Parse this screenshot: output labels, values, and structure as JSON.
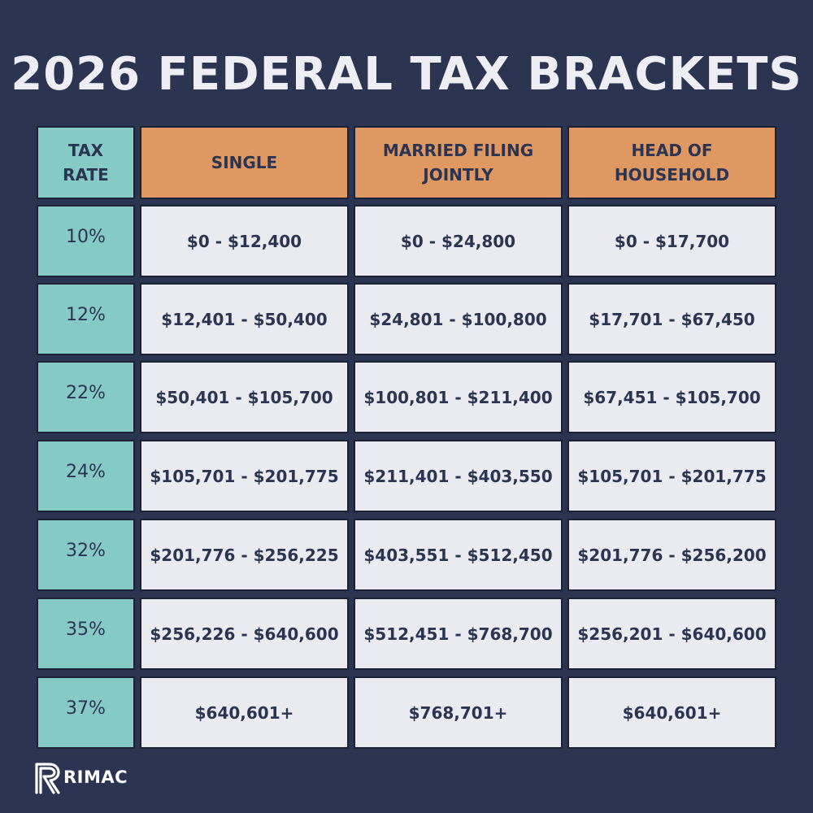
{
  "title": "2026 FEDERAL TAX BRACKETS",
  "colors": {
    "background": "#2b3451",
    "rate_column": "#86cac6",
    "header_orange": "#e09862",
    "value_cell": "#e9ebf0",
    "text_dark": "#2b3451"
  },
  "table": {
    "rate_header": "TAX RATE",
    "headers": [
      "SINGLE",
      "MARRIED FILING JOINTLY",
      "HEAD OF HOUSEHOLD"
    ],
    "rows": [
      {
        "rate": "10%",
        "single": "$0 - $12,400",
        "married": "$0 - $24,800",
        "head": "$0 - $17,700"
      },
      {
        "rate": "12%",
        "single": "$12,401 - $50,400",
        "married": "$24,801 - $100,800",
        "head": "$17,701 - $67,450"
      },
      {
        "rate": "22%",
        "single": "$50,401 - $105,700",
        "married": "$100,801 - $211,400",
        "head": "$67,451 - $105,700"
      },
      {
        "rate": "24%",
        "single": "$105,701 - $201,775",
        "married": "$211,401 - $403,550",
        "head": "$105,701 - $201,775"
      },
      {
        "rate": "32%",
        "single": "$201,776 - $256,225",
        "married": "$403,551 - $512,450",
        "head": "$201,776 - $256,200"
      },
      {
        "rate": "35%",
        "single": "$256,226 - $640,600",
        "married": "$512,451 - $768,700",
        "head": "$256,201 - $640,600"
      },
      {
        "rate": "37%",
        "single": "$640,601+",
        "married": "$768,701+",
        "head": "$640,601+"
      }
    ]
  },
  "logo": {
    "text": "RIMAC",
    "icon": "rimac-r-logo-icon"
  }
}
